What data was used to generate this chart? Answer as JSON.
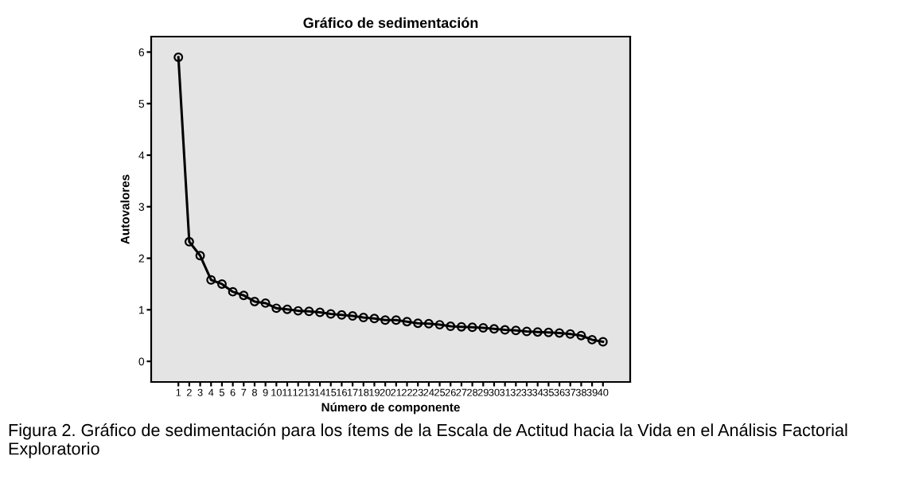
{
  "chart_data": {
    "type": "line",
    "title": "Gráfico de sedimentación",
    "xlabel": "Número de componente",
    "ylabel": "Autovalores",
    "categories": [
      "1",
      "2",
      "3",
      "4",
      "5",
      "6",
      "7",
      "8",
      "9",
      "10",
      "11",
      "12",
      "13",
      "14",
      "15",
      "16",
      "17",
      "18",
      "19",
      "20",
      "21",
      "22",
      "23",
      "24",
      "25",
      "26",
      "27",
      "28",
      "29",
      "30",
      "31",
      "32",
      "33",
      "34",
      "35",
      "36",
      "37",
      "38",
      "39",
      "40"
    ],
    "series": [
      {
        "color": "#000000",
        "values": [
          5.9,
          2.32,
          2.05,
          1.58,
          1.5,
          1.35,
          1.28,
          1.16,
          1.13,
          1.03,
          1.01,
          0.98,
          0.97,
          0.95,
          0.92,
          0.9,
          0.88,
          0.85,
          0.83,
          0.8,
          0.8,
          0.77,
          0.74,
          0.73,
          0.71,
          0.68,
          0.67,
          0.66,
          0.65,
          0.63,
          0.61,
          0.6,
          0.58,
          0.57,
          0.56,
          0.55,
          0.53,
          0.5,
          0.42,
          0.38
        ]
      }
    ],
    "ylim": [
      -0.4,
      6.3
    ],
    "yticks": [
      0,
      1,
      2,
      3,
      4,
      5,
      6
    ],
    "marker": "circle",
    "line_style": "solid",
    "grid": false,
    "legend": false,
    "annotations": [
      "Figura 2. Gráfico de sedimentación para los ítems de la Escala de Actitud hacia la Vida en el Análisis Factorial Exploratorio"
    ]
  }
}
